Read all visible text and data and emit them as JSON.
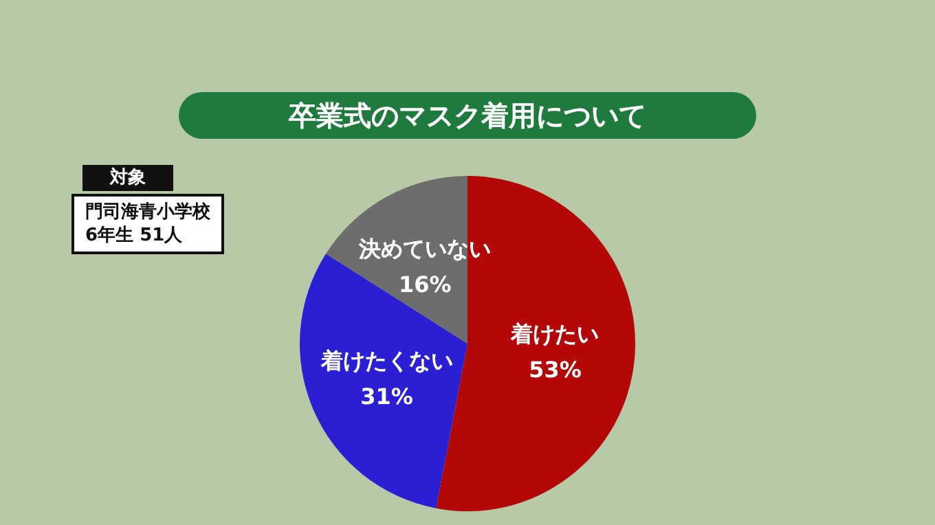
{
  "chart_data": {
    "type": "pie",
    "title": "卒業式のマスク着用について",
    "categories": [
      "着けたい",
      "着けたくない",
      "決めていない"
    ],
    "values": [
      53,
      31,
      16
    ],
    "colors": [
      "#b40808",
      "#2a1fd2",
      "#6d6d6d"
    ],
    "value_labels": [
      "53%",
      "31%",
      "16%"
    ],
    "legend": false,
    "annotations": [
      "対象",
      "門司海青小学校",
      "6年生 51人"
    ]
  }
}
